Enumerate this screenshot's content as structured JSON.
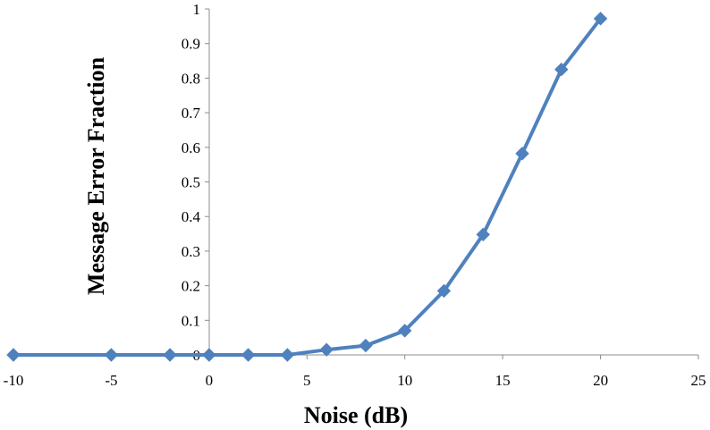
{
  "chart_data": {
    "type": "line",
    "title": "",
    "xlabel": "Noise  (dB)",
    "ylabel": "Message Error Fraction",
    "xlim": [
      -10,
      25
    ],
    "ylim": [
      0,
      1
    ],
    "x_ticks": [
      "-10",
      "-5",
      "0",
      "5",
      "10",
      "15",
      "20",
      "25"
    ],
    "y_ticks": [
      "0",
      "0.1",
      "0.2",
      "0.3",
      "0.4",
      "0.5",
      "0.6",
      "0.7",
      "0.8",
      "0.9",
      "1"
    ],
    "grid": false,
    "legend": "none",
    "series": [
      {
        "color": "#4f81bd",
        "marker": "diamond",
        "x": [
          -10,
          -5,
          -2,
          0,
          2,
          4,
          6,
          8,
          10,
          12,
          14,
          16,
          18,
          20
        ],
        "y": [
          0,
          0,
          0,
          0,
          0,
          0,
          0.015,
          0.027,
          0.07,
          0.185,
          0.348,
          0.582,
          0.825,
          0.972
        ]
      }
    ]
  }
}
